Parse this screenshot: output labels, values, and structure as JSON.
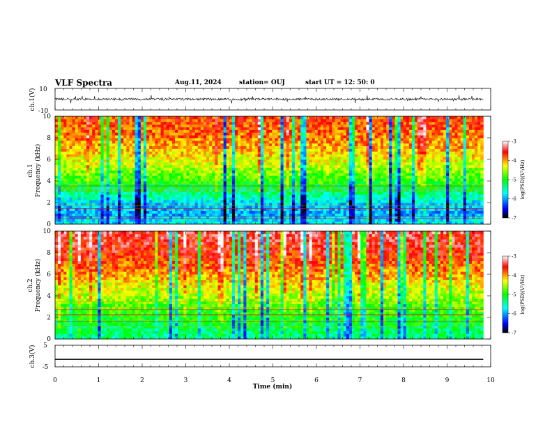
{
  "header": {
    "title": "VLF Spectra",
    "date": "Aug.11, 2024",
    "station": "station= OUJ",
    "start_ut": "start  UT  =   12: 50: 0"
  },
  "colors": {
    "spectrogram_scale": [
      "#000000",
      "#0000ff",
      "#00ffff",
      "#00ff00",
      "#ffff00",
      "#ff0000",
      "#ffffff"
    ],
    "waveform": "#000000"
  },
  "chart_data": [
    {
      "id": "ch1-waveform",
      "type": "line",
      "ylabel": "ch.1(V)",
      "ylim": [
        -10,
        10
      ],
      "y_tick_labels": [
        "10",
        "-10"
      ],
      "xlim": [
        0,
        10
      ],
      "data_end_min": 9.83,
      "baseline_v": 0,
      "description_values": {
        "typical_amplitude_v": 2,
        "spike_max_v": 4
      }
    },
    {
      "id": "ch1-spectrogram",
      "type": "heatmap",
      "ylabel_line1": "ch.1",
      "ylabel_line2": "Frequency  (kHz)",
      "ylim": [
        0,
        10
      ],
      "y_tick_labels": [
        "0",
        "2",
        "4",
        "6",
        "8",
        "10"
      ],
      "xlim": [
        0,
        10
      ],
      "data_end_min": 9.83,
      "colorbar": {
        "label": "log(PSD)(V²/Hz)",
        "range": [
          -7,
          -3
        ],
        "tick_labels": [
          "-3",
          "-4",
          "-5",
          "-6",
          "-7"
        ]
      },
      "z_profile_by_freq_khz": {
        "freq": [
          0,
          1,
          2,
          3,
          4,
          5,
          6,
          7,
          8,
          9,
          10
        ],
        "log_psd": [
          -5.7,
          -6.0,
          -5.8,
          -5.3,
          -4.9,
          -4.6,
          -4.3,
          -4.1,
          -3.9,
          -3.8,
          -3.7
        ]
      }
    },
    {
      "id": "ch2-spectrogram",
      "type": "heatmap",
      "ylabel_line1": "ch.2",
      "ylabel_line2": "Frequency  (kHz)",
      "ylim": [
        0,
        10
      ],
      "y_tick_labels": [
        "0",
        "2",
        "4",
        "6",
        "8",
        "10"
      ],
      "xlim": [
        0,
        10
      ],
      "data_end_min": 9.83,
      "colorbar": {
        "label": "log(PSD)(V²/Hz)",
        "range": [
          -7,
          -3
        ],
        "tick_labels": [
          "-3",
          "-4",
          "-5",
          "-6",
          "-7"
        ]
      },
      "z_profile_by_freq_khz": {
        "freq": [
          0,
          1,
          2,
          3,
          4,
          5,
          6,
          7,
          8,
          9,
          10
        ],
        "log_psd": [
          -5.4,
          -5.2,
          -5.0,
          -4.8,
          -4.5,
          -4.3,
          -4.0,
          -3.8,
          -3.6,
          -3.5,
          -3.4
        ]
      }
    },
    {
      "id": "ch3-waveform",
      "type": "line",
      "ylabel": "ch.3(V)",
      "ylim": [
        -5,
        5
      ],
      "y_tick_labels": [
        "5",
        "-5"
      ],
      "xlim": [
        0,
        10
      ],
      "data_end_min": 9.83,
      "constant_value_v": -1.5
    }
  ],
  "x_axis": {
    "label": "Time  (min)",
    "tick_labels": [
      "0",
      "1",
      "2",
      "3",
      "4",
      "5",
      "6",
      "7",
      "8",
      "9",
      "10"
    ]
  }
}
